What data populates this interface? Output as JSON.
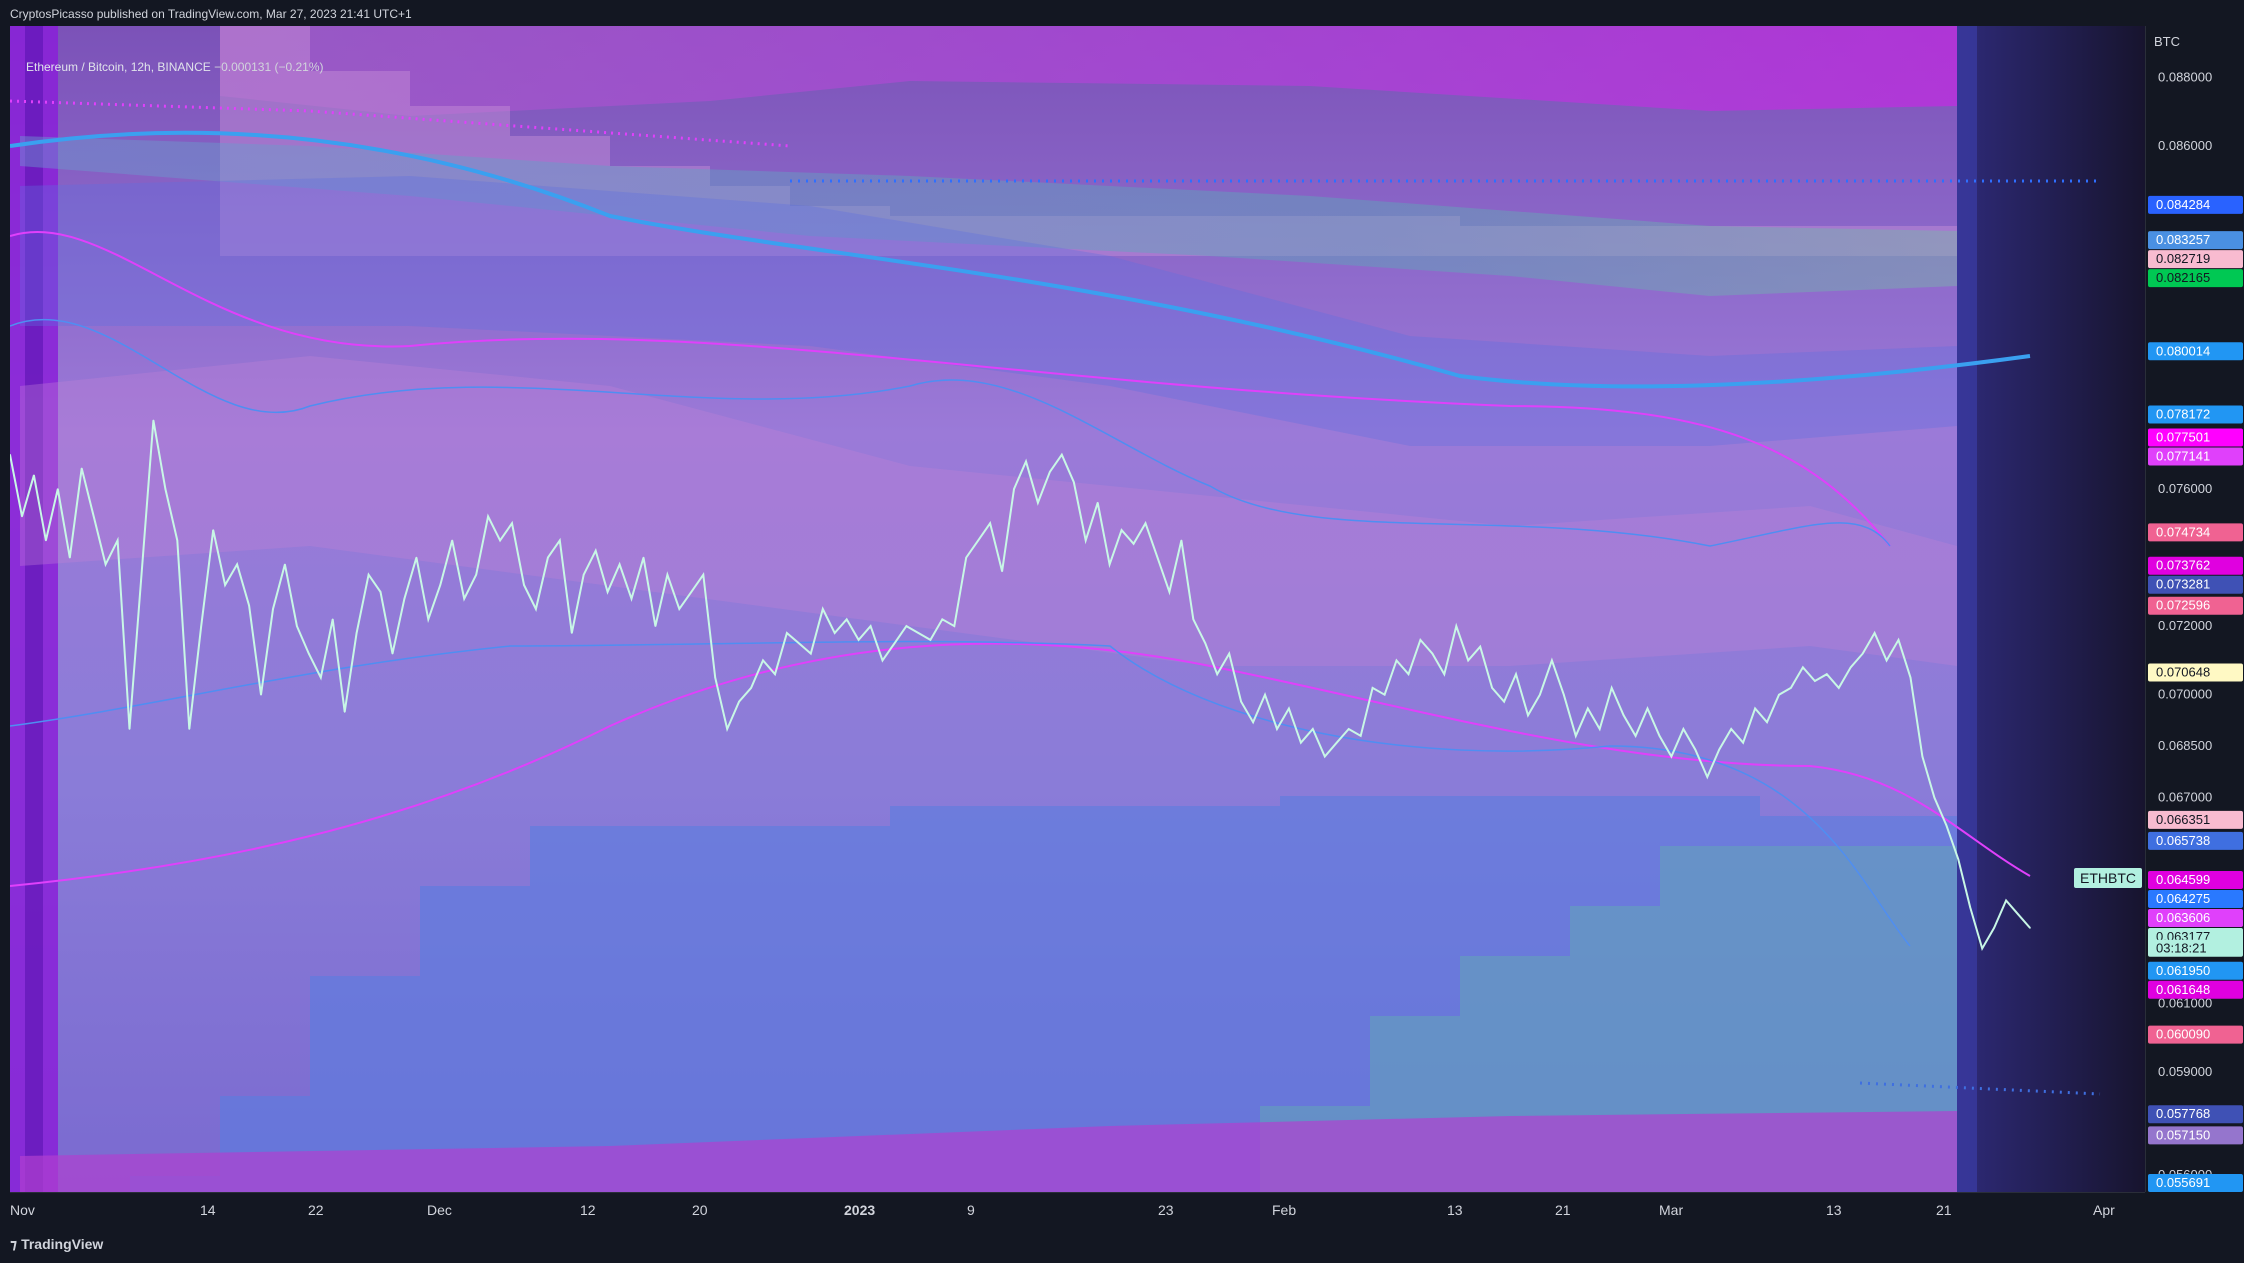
{
  "header": {
    "published_line": "CryptosPicasso published on TradingView.com, Mar 27, 2023 21:41 UTC+1"
  },
  "legend": {
    "symbol_desc": "Ethereum / Bitcoin, 12h, BINANCE",
    "change": "−0.000131 (−0.21%)"
  },
  "footer": {
    "brand": "TradingView"
  },
  "symbol_badge": "ETHBTC",
  "countdown": "03:18:21",
  "colors": {
    "background": "#131722",
    "price_line": "#c8f7e6",
    "band_blue": "#4f8ef2",
    "band_magenta": "#e040fb",
    "bg_lavender": "#8f7fd6",
    "last_price_bg": "#b2f0e0"
  },
  "chart_data": {
    "type": "line",
    "title": "",
    "ylabel": "BTC",
    "ylim": [
      0.0555,
      0.0895
    ],
    "x_ticks": [
      "Nov",
      "14",
      "22",
      "Dec",
      "12",
      "20",
      "2023",
      "9",
      "23",
      "Feb",
      "13",
      "21",
      "Mar",
      "13",
      "21",
      "Apr"
    ],
    "y_ticks": [
      "0.088000",
      "0.086000",
      "0.076000",
      "0.072000",
      "0.070000",
      "0.068500",
      "0.067000",
      "0.061000",
      "0.059000",
      "0.056000"
    ],
    "price_labels": [
      {
        "value": "0.084284",
        "color": "#2962ff",
        "text": "#ffffff"
      },
      {
        "value": "0.083257",
        "color": "#4a90e2",
        "text": "#ffffff"
      },
      {
        "value": "0.082719",
        "color": "#f8bbd0",
        "text": "#131722"
      },
      {
        "value": "0.082165",
        "color": "#00c853",
        "text": "#131722"
      },
      {
        "value": "0.080014",
        "color": "#2196f3",
        "text": "#ffffff"
      },
      {
        "value": "0.078172",
        "color": "#2196f3",
        "text": "#ffffff"
      },
      {
        "value": "0.077501",
        "color": "#ff00ff",
        "text": "#ffffff"
      },
      {
        "value": "0.077141",
        "color": "#e040fb",
        "text": "#ffffff"
      },
      {
        "value": "0.074734",
        "color": "#f06292",
        "text": "#ffffff"
      },
      {
        "value": "0.073762",
        "color": "#e000e0",
        "text": "#ffffff"
      },
      {
        "value": "0.073281",
        "color": "#3f51b5",
        "text": "#ffffff"
      },
      {
        "value": "0.072596",
        "color": "#f06292",
        "text": "#ffffff"
      },
      {
        "value": "0.070648",
        "color": "#fff9c4",
        "text": "#131722"
      },
      {
        "value": "0.066351",
        "color": "#f8bbd0",
        "text": "#131722"
      },
      {
        "value": "0.065738",
        "color": "#3f6fe0",
        "text": "#ffffff"
      },
      {
        "value": "0.064599",
        "color": "#e000e0",
        "text": "#ffffff"
      },
      {
        "value": "0.064275",
        "color": "#2979ff",
        "text": "#ffffff"
      },
      {
        "value": "0.063606",
        "color": "#e040fb",
        "text": "#ffffff"
      },
      {
        "value": "0.063177",
        "color": "#b2f0e0",
        "text": "#131722"
      },
      {
        "value": "0.061950",
        "color": "#2196f3",
        "text": "#ffffff"
      },
      {
        "value": "0.061648",
        "color": "#e000e0",
        "text": "#ffffff"
      },
      {
        "value": "0.060090",
        "color": "#f06292",
        "text": "#ffffff"
      },
      {
        "value": "0.057768",
        "color": "#3f51b5",
        "text": "#ffffff"
      },
      {
        "value": "0.057150",
        "color": "#9575cd",
        "text": "#ffffff"
      },
      {
        "value": "0.055691",
        "color": "#2196f3",
        "text": "#ffffff"
      }
    ],
    "price_series": [
      0.077,
      0.0752,
      0.0764,
      0.0745,
      0.076,
      0.074,
      0.0766,
      0.0752,
      0.0738,
      0.0745,
      0.069,
      0.0735,
      0.078,
      0.076,
      0.0745,
      0.069,
      0.072,
      0.0748,
      0.0732,
      0.0738,
      0.0726,
      0.07,
      0.0725,
      0.0738,
      0.072,
      0.0712,
      0.0705,
      0.0722,
      0.0695,
      0.0718,
      0.0735,
      0.073,
      0.0712,
      0.0728,
      0.074,
      0.0722,
      0.0732,
      0.0745,
      0.0728,
      0.0735,
      0.0752,
      0.0745,
      0.075,
      0.0732,
      0.0725,
      0.074,
      0.0745,
      0.0718,
      0.0735,
      0.0742,
      0.073,
      0.0738,
      0.0728,
      0.074,
      0.072,
      0.0735,
      0.0725,
      0.073,
      0.0735,
      0.0705,
      0.069,
      0.0698,
      0.0702,
      0.071,
      0.0706,
      0.0718,
      0.0715,
      0.0712,
      0.0725,
      0.0718,
      0.0722,
      0.0716,
      0.072,
      0.071,
      0.0715,
      0.072,
      0.0718,
      0.0716,
      0.0722,
      0.072,
      0.074,
      0.0745,
      0.075,
      0.0736,
      0.076,
      0.0768,
      0.0756,
      0.0765,
      0.077,
      0.0762,
      0.0745,
      0.0756,
      0.0738,
      0.0748,
      0.0744,
      0.075,
      0.074,
      0.073,
      0.0745,
      0.0722,
      0.0715,
      0.0706,
      0.0712,
      0.0698,
      0.0692,
      0.07,
      0.069,
      0.0696,
      0.0686,
      0.069,
      0.0682,
      0.0686,
      0.069,
      0.0688,
      0.0702,
      0.07,
      0.071,
      0.0706,
      0.0716,
      0.0712,
      0.0706,
      0.072,
      0.071,
      0.0714,
      0.0702,
      0.0698,
      0.0706,
      0.0694,
      0.07,
      0.071,
      0.07,
      0.0688,
      0.0696,
      0.069,
      0.0702,
      0.0694,
      0.0688,
      0.0696,
      0.0688,
      0.0682,
      0.069,
      0.0684,
      0.0676,
      0.0684,
      0.069,
      0.0686,
      0.0696,
      0.0692,
      0.07,
      0.0702,
      0.0708,
      0.0704,
      0.0706,
      0.0702,
      0.0708,
      0.0712,
      0.0718,
      0.071,
      0.0716,
      0.0705,
      0.0682,
      0.067,
      0.0662,
      0.0652,
      0.0638,
      0.0626,
      0.0632,
      0.064,
      0.0636,
      0.0632
    ]
  }
}
